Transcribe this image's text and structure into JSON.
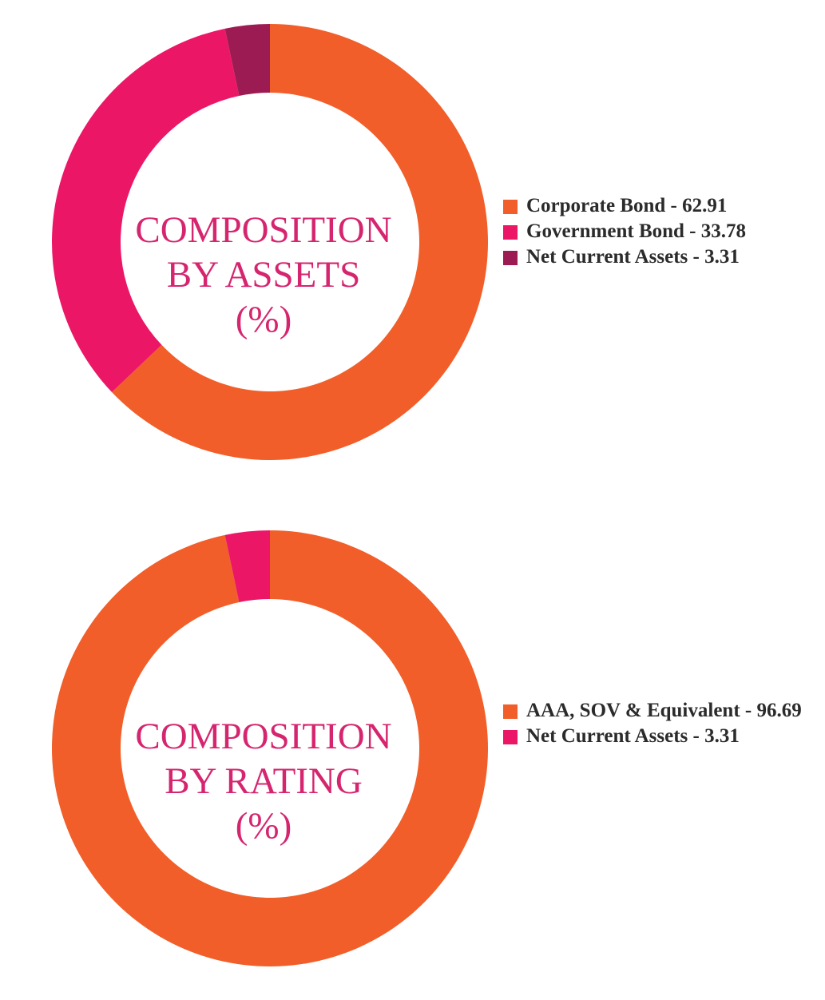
{
  "chart_data": [
    {
      "type": "pie",
      "donut": true,
      "title_lines": [
        "COMPOSITION",
        "BY ASSETS",
        "(%)"
      ],
      "title_color": "#d6256f",
      "legend_position": "right",
      "series": [
        {
          "label": "Corporate Bond - 62.91",
          "value": 62.91,
          "color": "#f15e29"
        },
        {
          "label": "Government Bond - 33.78",
          "value": 33.78,
          "color": "#ec1667"
        },
        {
          "label": "Net Current Assets - 3.31",
          "value": 3.31,
          "color": "#9c1b52"
        }
      ]
    },
    {
      "type": "pie",
      "donut": true,
      "title_lines": [
        "COMPOSITION",
        "BY RATING",
        "(%)"
      ],
      "title_color": "#d6256f",
      "legend_position": "right",
      "series": [
        {
          "label": "AAA, SOV & Equivalent - 96.69",
          "value": 96.69,
          "color": "#f15e29"
        },
        {
          "label": "Net Current Assets - 3.31",
          "value": 3.31,
          "color": "#ec1667"
        }
      ]
    }
  ]
}
